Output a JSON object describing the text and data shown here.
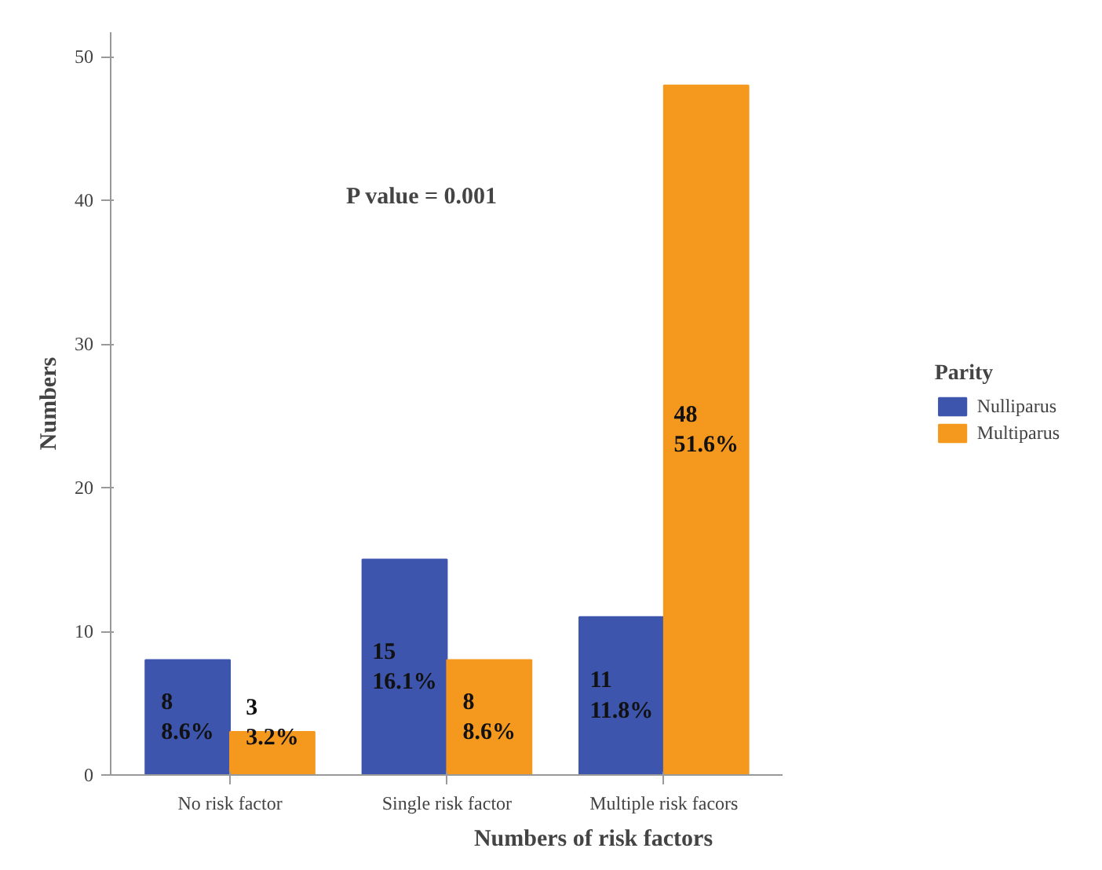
{
  "chart_data": {
    "type": "bar",
    "xlabel": "Numbers of risk factors",
    "ylabel": "Numbers",
    "legend_title": "Parity",
    "legend": "right",
    "categories": [
      "No risk factor",
      "Single risk factor",
      "Multiple risk facors"
    ],
    "series": [
      {
        "name": "Nulliparus",
        "color": "#3d55ad",
        "values": [
          8,
          15,
          11
        ],
        "value_labels": [
          "8\n8.6%",
          "15\n16.1%",
          "11\n11.8%"
        ]
      },
      {
        "name": "Multiparus",
        "color": "#f5981e",
        "values": [
          3,
          8,
          48
        ],
        "value_labels": [
          "3\n3.2%",
          "8\n8.6%",
          "48\n51.6%"
        ]
      }
    ],
    "ylim": [
      0,
      51.7
    ],
    "yticks": [
      0,
      10,
      20,
      30,
      40,
      50
    ],
    "grid": false,
    "annotations": [
      "P value = 0.001"
    ]
  }
}
